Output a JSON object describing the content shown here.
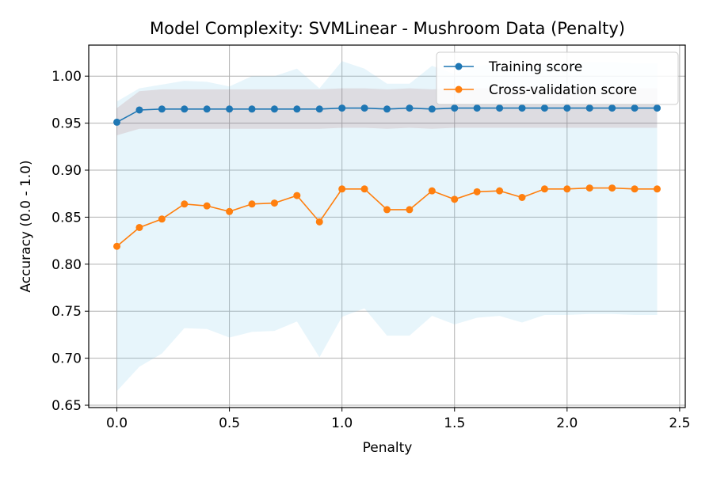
{
  "chart_data": {
    "type": "line",
    "title": "Model Complexity: SVMLinear - Mushroom Data (Penalty)",
    "xlabel": "Penalty",
    "ylabel": "Accuracy (0.0 - 1.0)",
    "xlim": [
      -0.125,
      2.525
    ],
    "ylim": [
      0.6475,
      1.033
    ],
    "xticks": [
      0.0,
      0.5,
      1.0,
      1.5,
      2.0,
      2.5
    ],
    "xtick_labels": [
      "0.0",
      "0.5",
      "1.0",
      "1.5",
      "2.0",
      "2.5"
    ],
    "yticks": [
      0.65,
      0.7,
      0.75,
      0.8,
      0.85,
      0.9,
      0.95,
      1.0
    ],
    "ytick_labels": [
      "0.65",
      "0.70",
      "0.75",
      "0.80",
      "0.85",
      "0.90",
      "0.95",
      "1.00"
    ],
    "grid": true,
    "legend_position": "top-right",
    "x": [
      0.0,
      0.1,
      0.2,
      0.3,
      0.4,
      0.5,
      0.6,
      0.7,
      0.8,
      0.9,
      1.0,
      1.1,
      1.2,
      1.3,
      1.4,
      1.5,
      1.6,
      1.7,
      1.8,
      1.9,
      2.0,
      2.1,
      2.2,
      2.3,
      2.4
    ],
    "series": [
      {
        "name": "Training score",
        "color": "#1f77b4",
        "band_color": "#8b0000",
        "values": [
          0.951,
          0.964,
          0.965,
          0.965,
          0.965,
          0.965,
          0.965,
          0.965,
          0.965,
          0.965,
          0.966,
          0.966,
          0.965,
          0.966,
          0.965,
          0.966,
          0.966,
          0.966,
          0.966,
          0.966,
          0.966,
          0.966,
          0.966,
          0.966,
          0.966
        ],
        "band_upper": [
          0.966,
          0.984,
          0.986,
          0.986,
          0.986,
          0.986,
          0.986,
          0.986,
          0.986,
          0.986,
          0.987,
          0.987,
          0.986,
          0.987,
          0.986,
          0.987,
          0.987,
          0.987,
          0.987,
          0.987,
          0.987,
          0.987,
          0.987,
          0.987,
          0.987
        ],
        "band_lower": [
          0.937,
          0.944,
          0.944,
          0.944,
          0.944,
          0.944,
          0.944,
          0.944,
          0.944,
          0.944,
          0.945,
          0.945,
          0.944,
          0.945,
          0.944,
          0.945,
          0.945,
          0.945,
          0.945,
          0.945,
          0.945,
          0.945,
          0.945,
          0.945,
          0.945
        ]
      },
      {
        "name": "Cross-validation score",
        "color": "#ff7f0e",
        "band_color": "#87ceeb",
        "values": [
          0.819,
          0.839,
          0.848,
          0.864,
          0.862,
          0.856,
          0.864,
          0.865,
          0.873,
          0.845,
          0.88,
          0.88,
          0.858,
          0.858,
          0.878,
          0.869,
          0.877,
          0.878,
          0.871,
          0.88,
          0.88,
          0.881,
          0.881,
          0.88,
          0.88
        ],
        "band_upper": [
          0.973,
          0.987,
          0.991,
          0.995,
          0.994,
          0.989,
          1.0,
          1.0,
          1.008,
          0.987,
          1.016,
          1.008,
          0.992,
          0.992,
          1.011,
          1.002,
          1.011,
          1.012,
          1.004,
          1.014,
          1.014,
          1.015,
          1.015,
          1.014,
          1.014
        ],
        "band_lower": [
          0.665,
          0.691,
          0.705,
          0.732,
          0.731,
          0.722,
          0.728,
          0.729,
          0.739,
          0.701,
          0.744,
          0.753,
          0.724,
          0.724,
          0.745,
          0.736,
          0.743,
          0.745,
          0.738,
          0.746,
          0.746,
          0.747,
          0.747,
          0.746,
          0.746
        ]
      }
    ]
  }
}
